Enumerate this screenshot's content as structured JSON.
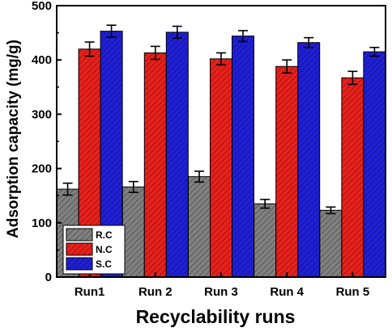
{
  "chart_data": {
    "type": "bar",
    "categories": [
      "Run1",
      "Run 2",
      "Run 3",
      "Run 4",
      "Run 5"
    ],
    "series": [
      {
        "name": "R.C",
        "values": [
          162,
          166,
          185,
          135,
          123
        ],
        "errors": [
          11,
          10,
          10,
          8,
          6
        ],
        "color": "#808080"
      },
      {
        "name": "N.C",
        "values": [
          420,
          413,
          402,
          388,
          367
        ],
        "errors": [
          13,
          12,
          11,
          12,
          12
        ],
        "color": "#e8201b"
      },
      {
        "name": "S.C",
        "values": [
          453,
          451,
          444,
          432,
          415
        ],
        "errors": [
          11,
          11,
          10,
          9,
          8
        ],
        "color": "#1f1fd6"
      }
    ],
    "xlabel": "Recyclability runs",
    "ylabel": "Adsorption capacity (mg/g)",
    "ylim": [
      0,
      500
    ],
    "yticks": [
      0,
      100,
      200,
      300,
      400,
      500
    ],
    "grid": false,
    "legend_position": "bottom-left",
    "bar_pattern": "diagonal-hatch",
    "error_bars": true
  }
}
